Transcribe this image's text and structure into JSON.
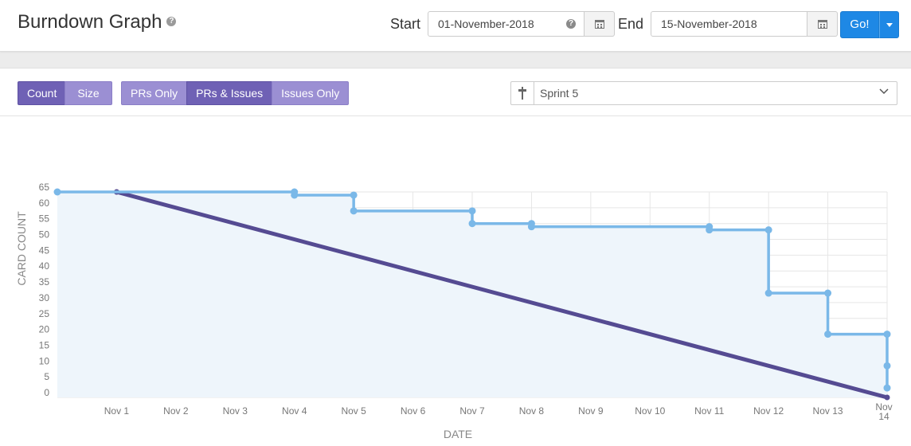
{
  "header": {
    "title": "Burndown Graph",
    "help_glyph": "?",
    "start_label": "Start",
    "start_value": "01-November-2018",
    "end_label": "End",
    "end_value": "15-November-2018",
    "go_label": "Go!"
  },
  "toolbar": {
    "metric_buttons": [
      {
        "label": "Count",
        "active": true
      },
      {
        "label": "Size",
        "active": false
      }
    ],
    "filter_buttons": [
      {
        "label": "PRs Only",
        "active": false
      },
      {
        "label": "PRs & Issues",
        "active": true
      },
      {
        "label": "Issues Only",
        "active": false
      }
    ],
    "sprint_value": "Sprint 5"
  },
  "colors": {
    "accent": "#1e88e5",
    "button_purple": "#9b8fd3",
    "button_purple_active": "#6f61b5",
    "actual_line": "#7ab8e8",
    "ideal_line": "#554b92",
    "area_fill": "#eef5fb"
  },
  "chart_data": {
    "type": "line",
    "xlabel": "DATE",
    "ylabel": "CARD COUNT",
    "ylim": [
      0,
      65
    ],
    "yticks": [
      0,
      5,
      10,
      15,
      20,
      25,
      30,
      35,
      40,
      45,
      50,
      55,
      60,
      65
    ],
    "xlim": [
      0,
      14
    ],
    "x_tick_labels": [
      {
        "x": 1,
        "label": "Nov 1"
      },
      {
        "x": 2,
        "label": "Nov 2"
      },
      {
        "x": 3,
        "label": "Nov 3"
      },
      {
        "x": 4,
        "label": "Nov 4"
      },
      {
        "x": 5,
        "label": "Nov 5"
      },
      {
        "x": 6,
        "label": "Nov 6"
      },
      {
        "x": 7,
        "label": "Nov 7"
      },
      {
        "x": 8,
        "label": "Nov 8"
      },
      {
        "x": 9,
        "label": "Nov 9"
      },
      {
        "x": 10,
        "label": "Nov 10"
      },
      {
        "x": 11,
        "label": "Nov 11"
      },
      {
        "x": 12,
        "label": "Nov 12"
      },
      {
        "x": 13,
        "label": "Nov 13"
      },
      {
        "x": 14,
        "label": "Nov\n14"
      }
    ],
    "grid": true,
    "series": [
      {
        "kind": "actual",
        "points": [
          [
            0,
            65
          ],
          [
            4,
            65
          ],
          [
            4,
            64
          ],
          [
            5,
            64
          ],
          [
            5,
            59
          ],
          [
            7,
            59
          ],
          [
            7,
            55
          ],
          [
            8,
            55
          ],
          [
            8,
            54
          ],
          [
            11,
            54
          ],
          [
            11,
            53
          ],
          [
            12,
            53
          ],
          [
            12,
            33
          ],
          [
            13,
            33
          ],
          [
            13,
            20
          ],
          [
            14,
            20
          ],
          [
            14,
            10
          ],
          [
            14,
            3
          ]
        ]
      },
      {
        "kind": "ideal",
        "points": [
          [
            1,
            65
          ],
          [
            14,
            0
          ]
        ]
      }
    ]
  }
}
